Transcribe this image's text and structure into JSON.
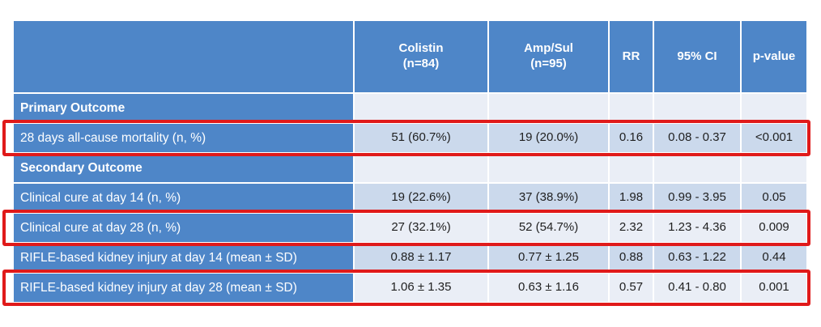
{
  "colors": {
    "header_blue": "#4e86c8",
    "band_light": "#eaeef6",
    "band_blue": "#cbd9ec",
    "highlight_red": "#e01a1a",
    "data_text": "#1f1f1f",
    "header_text": "#ffffff"
  },
  "table": {
    "headers": {
      "treatment1": {
        "line1": "Colistin",
        "line2": "(n=84)"
      },
      "treatment2": {
        "line1": "Amp/Sul",
        "line2": "(n=95)"
      },
      "rr": "RR",
      "ci": "95% CI",
      "pvalue": "p-value"
    },
    "rows": [
      {
        "type": "section",
        "label": "Primary Outcome",
        "values": [
          "",
          "",
          "",
          "",
          ""
        ],
        "highlighted": false
      },
      {
        "type": "data",
        "label": "28 days all-cause mortality (n, %)",
        "values": [
          "51 (60.7%)",
          "19 (20.0%)",
          "0.16",
          "0.08 - 0.37",
          "<0.001"
        ],
        "highlighted": true
      },
      {
        "type": "section",
        "label": "Secondary Outcome",
        "values": [
          "",
          "",
          "",
          "",
          ""
        ],
        "highlighted": false
      },
      {
        "type": "data",
        "label": "Clinical cure at day 14 (n, %)",
        "values": [
          "19 (22.6%)",
          "37 (38.9%)",
          "1.98",
          "0.99 - 3.95",
          "0.05"
        ],
        "highlighted": false
      },
      {
        "type": "data",
        "label": "Clinical cure at day 28 (n, %)",
        "values": [
          "27 (32.1%)",
          "52 (54.7%)",
          "2.32",
          "1.23 - 4.36",
          "0.009"
        ],
        "highlighted": true
      },
      {
        "type": "data",
        "label": "RIFLE-based kidney injury at day 14 (mean ± SD)",
        "values": [
          "0.88 ± 1.17",
          "0.77 ± 1.25",
          "0.88",
          "0.63 - 1.22",
          "0.44"
        ],
        "highlighted": false
      },
      {
        "type": "data",
        "label": "RIFLE-based kidney injury at day 28 (mean ± SD)",
        "values": [
          "1.06 ± 1.35",
          "0.63 ± 1.16",
          "0.57",
          "0.41 - 0.80",
          "0.001"
        ],
        "highlighted": true
      }
    ]
  }
}
